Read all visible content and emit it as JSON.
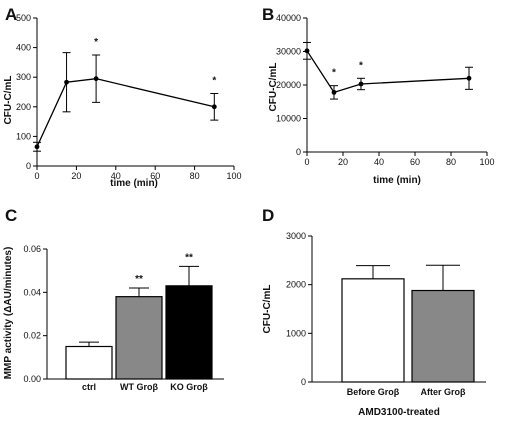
{
  "panels": [
    {
      "letter": "A"
    },
    {
      "letter": "B"
    },
    {
      "letter": "C"
    },
    {
      "letter": "D",
      "footer": "AMD3100-treated"
    }
  ],
  "chart_data": [
    {
      "panel": "A",
      "type": "line",
      "xlabel": "time (min)",
      "ylabel": "CFU-C/mL",
      "xlim": [
        0,
        100
      ],
      "ylim": [
        0,
        500
      ],
      "xticks": [
        0,
        20,
        40,
        60,
        80,
        100
      ],
      "yticks": [
        0,
        100,
        200,
        300,
        400,
        500
      ],
      "series": [
        {
          "x": [
            0,
            15,
            30,
            90
          ],
          "y": [
            65,
            283,
            295,
            200
          ],
          "err": [
            15,
            100,
            80,
            45
          ]
        }
      ],
      "annotations": [
        {
          "x": 30,
          "text": "*"
        },
        {
          "x": 90,
          "text": "*"
        }
      ],
      "grid": false
    },
    {
      "panel": "B",
      "type": "line",
      "xlabel": "time (min)",
      "ylabel": "CFU-C/mL",
      "xlim": [
        0,
        100
      ],
      "ylim": [
        0,
        40000
      ],
      "xticks": [
        0,
        20,
        40,
        60,
        80,
        100
      ],
      "yticks": [
        0,
        10000,
        20000,
        30000,
        40000
      ],
      "series": [
        {
          "x": [
            0,
            15,
            30,
            90
          ],
          "y": [
            30200,
            17800,
            20300,
            22000
          ],
          "err": [
            2500,
            2000,
            1700,
            3300
          ]
        }
      ],
      "annotations": [
        {
          "x": 15,
          "text": "*"
        },
        {
          "x": 30,
          "text": "*"
        }
      ],
      "grid": false
    },
    {
      "panel": "C",
      "type": "bar",
      "ylabel": "MMP activity (ΔAU/minutes)",
      "ylim": [
        0,
        0.06
      ],
      "yticks": [
        "0.00",
        "0.02",
        "0.04",
        "0.06"
      ],
      "categories": [
        "ctrl",
        "WT Groβ",
        "KO Groβ"
      ],
      "values": [
        0.015,
        0.038,
        0.043
      ],
      "errors": [
        0.002,
        0.004,
        0.009
      ],
      "colors": [
        "#ffffff",
        "#888888",
        "#000000"
      ],
      "annotations": [
        "",
        "**",
        "**"
      ],
      "grid": false
    },
    {
      "panel": "D",
      "type": "bar",
      "ylabel": "CFU-C/mL",
      "ylim": [
        0,
        3000
      ],
      "yticks": [
        0,
        1000,
        2000,
        3000
      ],
      "categories": [
        "Before Groβ",
        "After Groβ"
      ],
      "values": [
        2120,
        1880
      ],
      "errors": [
        270,
        520
      ],
      "colors": [
        "#ffffff",
        "#888888"
      ],
      "grid": false
    }
  ]
}
